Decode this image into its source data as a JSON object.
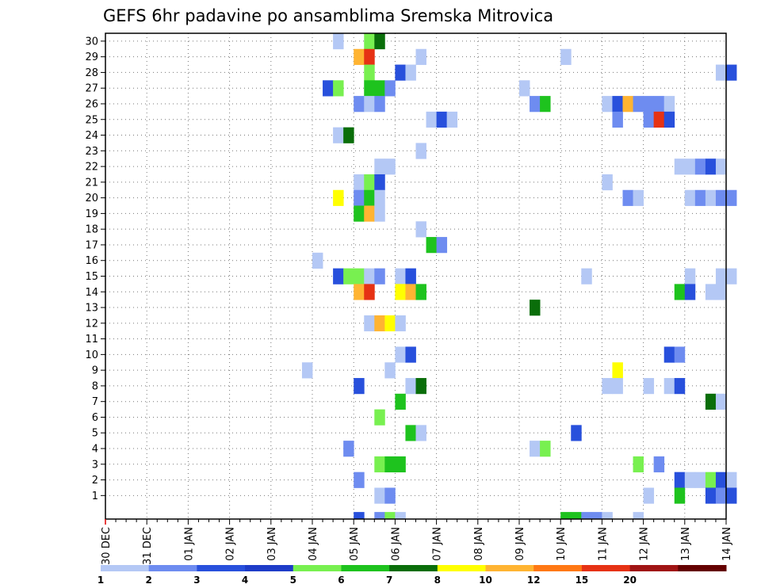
{
  "chart_data": {
    "type": "heatmap",
    "title": "GEFS 6hr padavine po ansamblima Sremska Mitrovica",
    "xlabel": "",
    "ylabel": "",
    "x_tick_labels": [
      "30 DEC",
      "31 DEC",
      "01 JAN",
      "02 JAN",
      "03 JAN",
      "04 JAN",
      "05 JAN",
      "06 JAN",
      "07 JAN",
      "08 JAN",
      "09 JAN",
      "10 JAN",
      "11 JAN",
      "12 JAN",
      "13 JAN",
      "14 JAN"
    ],
    "y_tick_labels": [
      "1",
      "2",
      "3",
      "4",
      "5",
      "6",
      "7",
      "8",
      "9",
      "10",
      "11",
      "12",
      "13",
      "14",
      "15",
      "16",
      "17",
      "18",
      "19",
      "20",
      "21",
      "22",
      "23",
      "24",
      "25",
      "26",
      "27",
      "28",
      "29",
      "30"
    ],
    "time_step_hours": 6,
    "grid": "dotted",
    "colorbar": {
      "levels": [
        "1",
        "2",
        "3",
        "4",
        "5",
        "6",
        "7",
        "8",
        "10",
        "12",
        "15",
        "20"
      ],
      "colors": [
        "#b4c8f5",
        "#6e8cf0",
        "#2850dc",
        "#1e3cc8",
        "#78f050",
        "#1ec31e",
        "#0a6e0a",
        "#ffff00",
        "#ffb432",
        "#ff7814",
        "#e63214",
        "#a01414",
        "#640000"
      ]
    },
    "cells": [
      {
        "member": 30,
        "step": 22,
        "level": 1
      },
      {
        "member": 30,
        "step": 25,
        "level": 5
      },
      {
        "member": 30,
        "step": 26,
        "level": 7
      },
      {
        "member": 29,
        "step": 24,
        "level": 9
      },
      {
        "member": 29,
        "step": 25,
        "level": 11
      },
      {
        "member": 29,
        "step": 30,
        "level": 1
      },
      {
        "member": 29,
        "step": 44,
        "level": 1
      },
      {
        "member": 28,
        "step": 25,
        "level": 5
      },
      {
        "member": 28,
        "step": 28,
        "level": 3
      },
      {
        "member": 28,
        "step": 29,
        "level": 1
      },
      {
        "member": 28,
        "step": 59,
        "level": 1
      },
      {
        "member": 28,
        "step": 60,
        "level": 3
      },
      {
        "member": 27,
        "step": 21,
        "level": 3
      },
      {
        "member": 27,
        "step": 22,
        "level": 5
      },
      {
        "member": 27,
        "step": 25,
        "level": 6
      },
      {
        "member": 27,
        "step": 26,
        "level": 6
      },
      {
        "member": 27,
        "step": 27,
        "level": 2
      },
      {
        "member": 27,
        "step": 40,
        "level": 1
      },
      {
        "member": 26,
        "step": 24,
        "level": 2
      },
      {
        "member": 26,
        "step": 25,
        "level": 1
      },
      {
        "member": 26,
        "step": 26,
        "level": 2
      },
      {
        "member": 26,
        "step": 41,
        "level": 2
      },
      {
        "member": 26,
        "step": 42,
        "level": 6
      },
      {
        "member": 26,
        "step": 48,
        "level": 1
      },
      {
        "member": 26,
        "step": 49,
        "level": 3
      },
      {
        "member": 26,
        "step": 50,
        "level": 9
      },
      {
        "member": 26,
        "step": 51,
        "level": 2
      },
      {
        "member": 26,
        "step": 52,
        "level": 2
      },
      {
        "member": 26,
        "step": 53,
        "level": 2
      },
      {
        "member": 26,
        "step": 54,
        "level": 1
      },
      {
        "member": 25,
        "step": 31,
        "level": 1
      },
      {
        "member": 25,
        "step": 32,
        "level": 3
      },
      {
        "member": 25,
        "step": 33,
        "level": 1
      },
      {
        "member": 25,
        "step": 49,
        "level": 2
      },
      {
        "member": 25,
        "step": 52,
        "level": 2
      },
      {
        "member": 25,
        "step": 53,
        "level": 11
      },
      {
        "member": 25,
        "step": 54,
        "level": 3
      },
      {
        "member": 24,
        "step": 22,
        "level": 1
      },
      {
        "member": 24,
        "step": 23,
        "level": 7
      },
      {
        "member": 23,
        "step": 30,
        "level": 1
      },
      {
        "member": 22,
        "step": 26,
        "level": 1
      },
      {
        "member": 22,
        "step": 27,
        "level": 1
      },
      {
        "member": 22,
        "step": 55,
        "level": 1
      },
      {
        "member": 22,
        "step": 56,
        "level": 1
      },
      {
        "member": 22,
        "step": 57,
        "level": 2
      },
      {
        "member": 22,
        "step": 58,
        "level": 3
      },
      {
        "member": 22,
        "step": 59,
        "level": 1
      },
      {
        "member": 21,
        "step": 24,
        "level": 1
      },
      {
        "member": 21,
        "step": 25,
        "level": 5
      },
      {
        "member": 21,
        "step": 26,
        "level": 3
      },
      {
        "member": 21,
        "step": 48,
        "level": 1
      },
      {
        "member": 20,
        "step": 22,
        "level": 8
      },
      {
        "member": 20,
        "step": 24,
        "level": 2
      },
      {
        "member": 20,
        "step": 25,
        "level": 6
      },
      {
        "member": 20,
        "step": 26,
        "level": 1
      },
      {
        "member": 20,
        "step": 50,
        "level": 2
      },
      {
        "member": 20,
        "step": 51,
        "level": 1
      },
      {
        "member": 20,
        "step": 56,
        "level": 1
      },
      {
        "member": 20,
        "step": 57,
        "level": 2
      },
      {
        "member": 20,
        "step": 58,
        "level": 1
      },
      {
        "member": 20,
        "step": 59,
        "level": 2
      },
      {
        "member": 20,
        "step": 60,
        "level": 2
      },
      {
        "member": 19,
        "step": 24,
        "level": 6
      },
      {
        "member": 19,
        "step": 25,
        "level": 9
      },
      {
        "member": 19,
        "step": 26,
        "level": 1
      },
      {
        "member": 18,
        "step": 30,
        "level": 1
      },
      {
        "member": 17,
        "step": 31,
        "level": 6
      },
      {
        "member": 17,
        "step": 32,
        "level": 2
      },
      {
        "member": 16,
        "step": 20,
        "level": 1
      },
      {
        "member": 15,
        "step": 22,
        "level": 3
      },
      {
        "member": 15,
        "step": 23,
        "level": 5
      },
      {
        "member": 15,
        "step": 24,
        "level": 5
      },
      {
        "member": 15,
        "step": 25,
        "level": 1
      },
      {
        "member": 15,
        "step": 26,
        "level": 2
      },
      {
        "member": 15,
        "step": 28,
        "level": 1
      },
      {
        "member": 15,
        "step": 29,
        "level": 3
      },
      {
        "member": 15,
        "step": 46,
        "level": 1
      },
      {
        "member": 15,
        "step": 56,
        "level": 1
      },
      {
        "member": 15,
        "step": 59,
        "level": 1
      },
      {
        "member": 15,
        "step": 60,
        "level": 1
      },
      {
        "member": 14,
        "step": 24,
        "level": 9
      },
      {
        "member": 14,
        "step": 25,
        "level": 11
      },
      {
        "member": 14,
        "step": 28,
        "level": 8
      },
      {
        "member": 14,
        "step": 29,
        "level": 9
      },
      {
        "member": 14,
        "step": 30,
        "level": 6
      },
      {
        "member": 14,
        "step": 55,
        "level": 6
      },
      {
        "member": 14,
        "step": 56,
        "level": 3
      },
      {
        "member": 14,
        "step": 58,
        "level": 1
      },
      {
        "member": 14,
        "step": 59,
        "level": 1
      },
      {
        "member": 13,
        "step": 41,
        "level": 7
      },
      {
        "member": 12,
        "step": 25,
        "level": 1
      },
      {
        "member": 12,
        "step": 26,
        "level": 9
      },
      {
        "member": 12,
        "step": 27,
        "level": 8
      },
      {
        "member": 12,
        "step": 28,
        "level": 1
      },
      {
        "member": 10,
        "step": 28,
        "level": 1
      },
      {
        "member": 10,
        "step": 29,
        "level": 3
      },
      {
        "member": 10,
        "step": 54,
        "level": 3
      },
      {
        "member": 10,
        "step": 55,
        "level": 2
      },
      {
        "member": 9,
        "step": 19,
        "level": 1
      },
      {
        "member": 9,
        "step": 27,
        "level": 1
      },
      {
        "member": 9,
        "step": 49,
        "level": 8
      },
      {
        "member": 8,
        "step": 24,
        "level": 3
      },
      {
        "member": 8,
        "step": 29,
        "level": 1
      },
      {
        "member": 8,
        "step": 30,
        "level": 7
      },
      {
        "member": 8,
        "step": 48,
        "level": 1
      },
      {
        "member": 8,
        "step": 49,
        "level": 1
      },
      {
        "member": 8,
        "step": 52,
        "level": 1
      },
      {
        "member": 8,
        "step": 54,
        "level": 1
      },
      {
        "member": 8,
        "step": 55,
        "level": 3
      },
      {
        "member": 7,
        "step": 28,
        "level": 6
      },
      {
        "member": 7,
        "step": 58,
        "level": 7
      },
      {
        "member": 7,
        "step": 59,
        "level": 1
      },
      {
        "member": 6,
        "step": 26,
        "level": 5
      },
      {
        "member": 5,
        "step": 29,
        "level": 6
      },
      {
        "member": 5,
        "step": 30,
        "level": 1
      },
      {
        "member": 5,
        "step": 45,
        "level": 3
      },
      {
        "member": 4,
        "step": 23,
        "level": 2
      },
      {
        "member": 4,
        "step": 41,
        "level": 1
      },
      {
        "member": 4,
        "step": 42,
        "level": 5
      },
      {
        "member": 3,
        "step": 26,
        "level": 5
      },
      {
        "member": 3,
        "step": 27,
        "level": 6
      },
      {
        "member": 3,
        "step": 28,
        "level": 6
      },
      {
        "member": 3,
        "step": 51,
        "level": 5
      },
      {
        "member": 3,
        "step": 53,
        "level": 2
      },
      {
        "member": 2,
        "step": 24,
        "level": 2
      },
      {
        "member": 2,
        "step": 55,
        "level": 3
      },
      {
        "member": 2,
        "step": 56,
        "level": 1
      },
      {
        "member": 2,
        "step": 57,
        "level": 1
      },
      {
        "member": 2,
        "step": 58,
        "level": 5
      },
      {
        "member": 2,
        "step": 59,
        "level": 3
      },
      {
        "member": 2,
        "step": 60,
        "level": 1
      },
      {
        "member": 1,
        "step": 26,
        "level": 1
      },
      {
        "member": 1,
        "step": 27,
        "level": 2
      },
      {
        "member": 1,
        "step": 52,
        "level": 1
      },
      {
        "member": 1,
        "step": 55,
        "level": 6
      },
      {
        "member": 1,
        "step": 58,
        "level": 3
      },
      {
        "member": 1,
        "step": 59,
        "level": 2
      },
      {
        "member": 1,
        "step": 60,
        "level": 3
      },
      {
        "member": 0,
        "step": 24,
        "level": 3
      },
      {
        "member": 0,
        "step": 26,
        "level": 2
      },
      {
        "member": 0,
        "step": 27,
        "level": 5
      },
      {
        "member": 0,
        "step": 28,
        "level": 1
      },
      {
        "member": 0,
        "step": 44,
        "level": 6
      },
      {
        "member": 0,
        "step": 45,
        "level": 6
      },
      {
        "member": 0,
        "step": 46,
        "level": 2
      },
      {
        "member": 0,
        "step": 47,
        "level": 2
      },
      {
        "member": 0,
        "step": 48,
        "level": 1
      },
      {
        "member": 0,
        "step": 51,
        "level": 1
      }
    ]
  }
}
